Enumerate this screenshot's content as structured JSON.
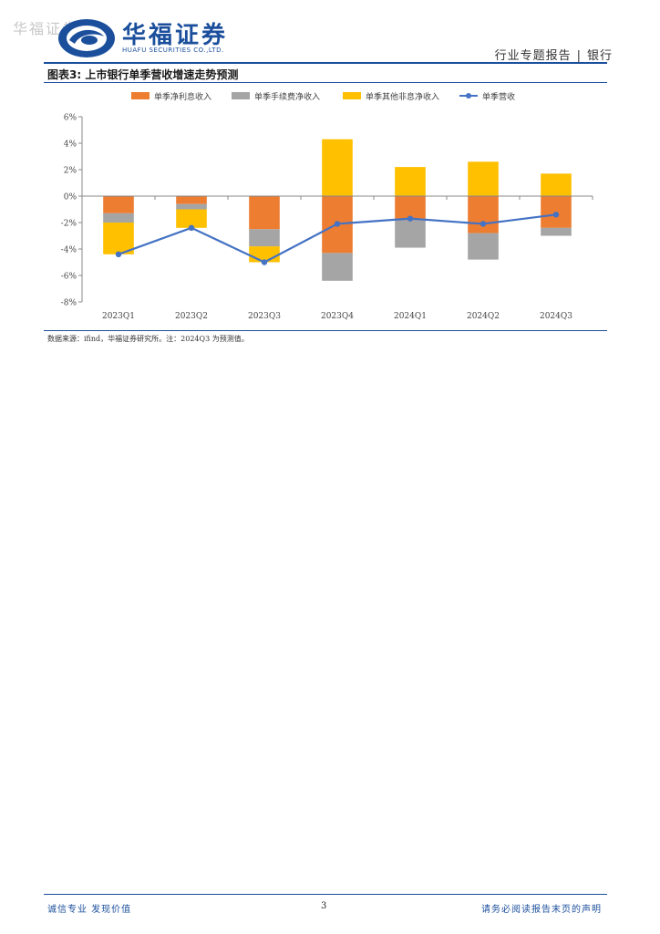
{
  "watermark": "华福证券",
  "logo": {
    "cn": "华福证券",
    "en": "HUAFU SECURITIES CO.,LTD."
  },
  "header": {
    "report_type": "行业专题报告",
    "separator": "|",
    "sector": "银行"
  },
  "figure_title": "图表3:  上市银行单季营收增速走势预测",
  "source_note": "数据来源：ifind，华福证券研究所。注：2024Q3 为预测值。",
  "footer": {
    "left": "诚信专业  发现价值",
    "page": "3",
    "right": "请务必阅读报告末页的声明"
  },
  "colors": {
    "brand": "#1b4f9c",
    "interest": "#ED7D31",
    "fee": "#A5A5A5",
    "other": "#FFC000",
    "total": "#4472C4"
  },
  "chart_data": {
    "type": "bar",
    "stacked": true,
    "categories": [
      "2023Q1",
      "2023Q2",
      "2023Q3",
      "2023Q4",
      "2024Q1",
      "2024Q2",
      "2024Q3"
    ],
    "series": [
      {
        "name": "单季净利息收入",
        "kind": "bar",
        "color": "#ED7D31",
        "values": [
          -1.3,
          -0.6,
          -2.5,
          -4.3,
          -1.7,
          -2.8,
          -2.4
        ]
      },
      {
        "name": "单季手续费净收入",
        "kind": "bar",
        "color": "#A5A5A5",
        "values": [
          -0.7,
          -0.4,
          -1.3,
          -2.1,
          -2.2,
          -2.0,
          -0.6
        ]
      },
      {
        "name": "单季其他非息净收入",
        "kind": "bar",
        "color": "#FFC000",
        "values": [
          -2.4,
          -1.4,
          -1.2,
          4.3,
          2.2,
          2.6,
          1.7
        ]
      },
      {
        "name": "单季营收",
        "kind": "line",
        "color": "#4472C4",
        "values": [
          -4.4,
          -2.4,
          -5.0,
          -2.1,
          -1.7,
          -2.1,
          -1.4
        ]
      }
    ],
    "ylim": [
      -8,
      6
    ],
    "yticks": [
      "-8%",
      "-6%",
      "-4%",
      "-2%",
      "0%",
      "2%",
      "4%",
      "6%"
    ],
    "ytick_values": [
      -8,
      -6,
      -4,
      -2,
      0,
      2,
      4,
      6
    ],
    "legend_position": "top",
    "grid": false
  }
}
